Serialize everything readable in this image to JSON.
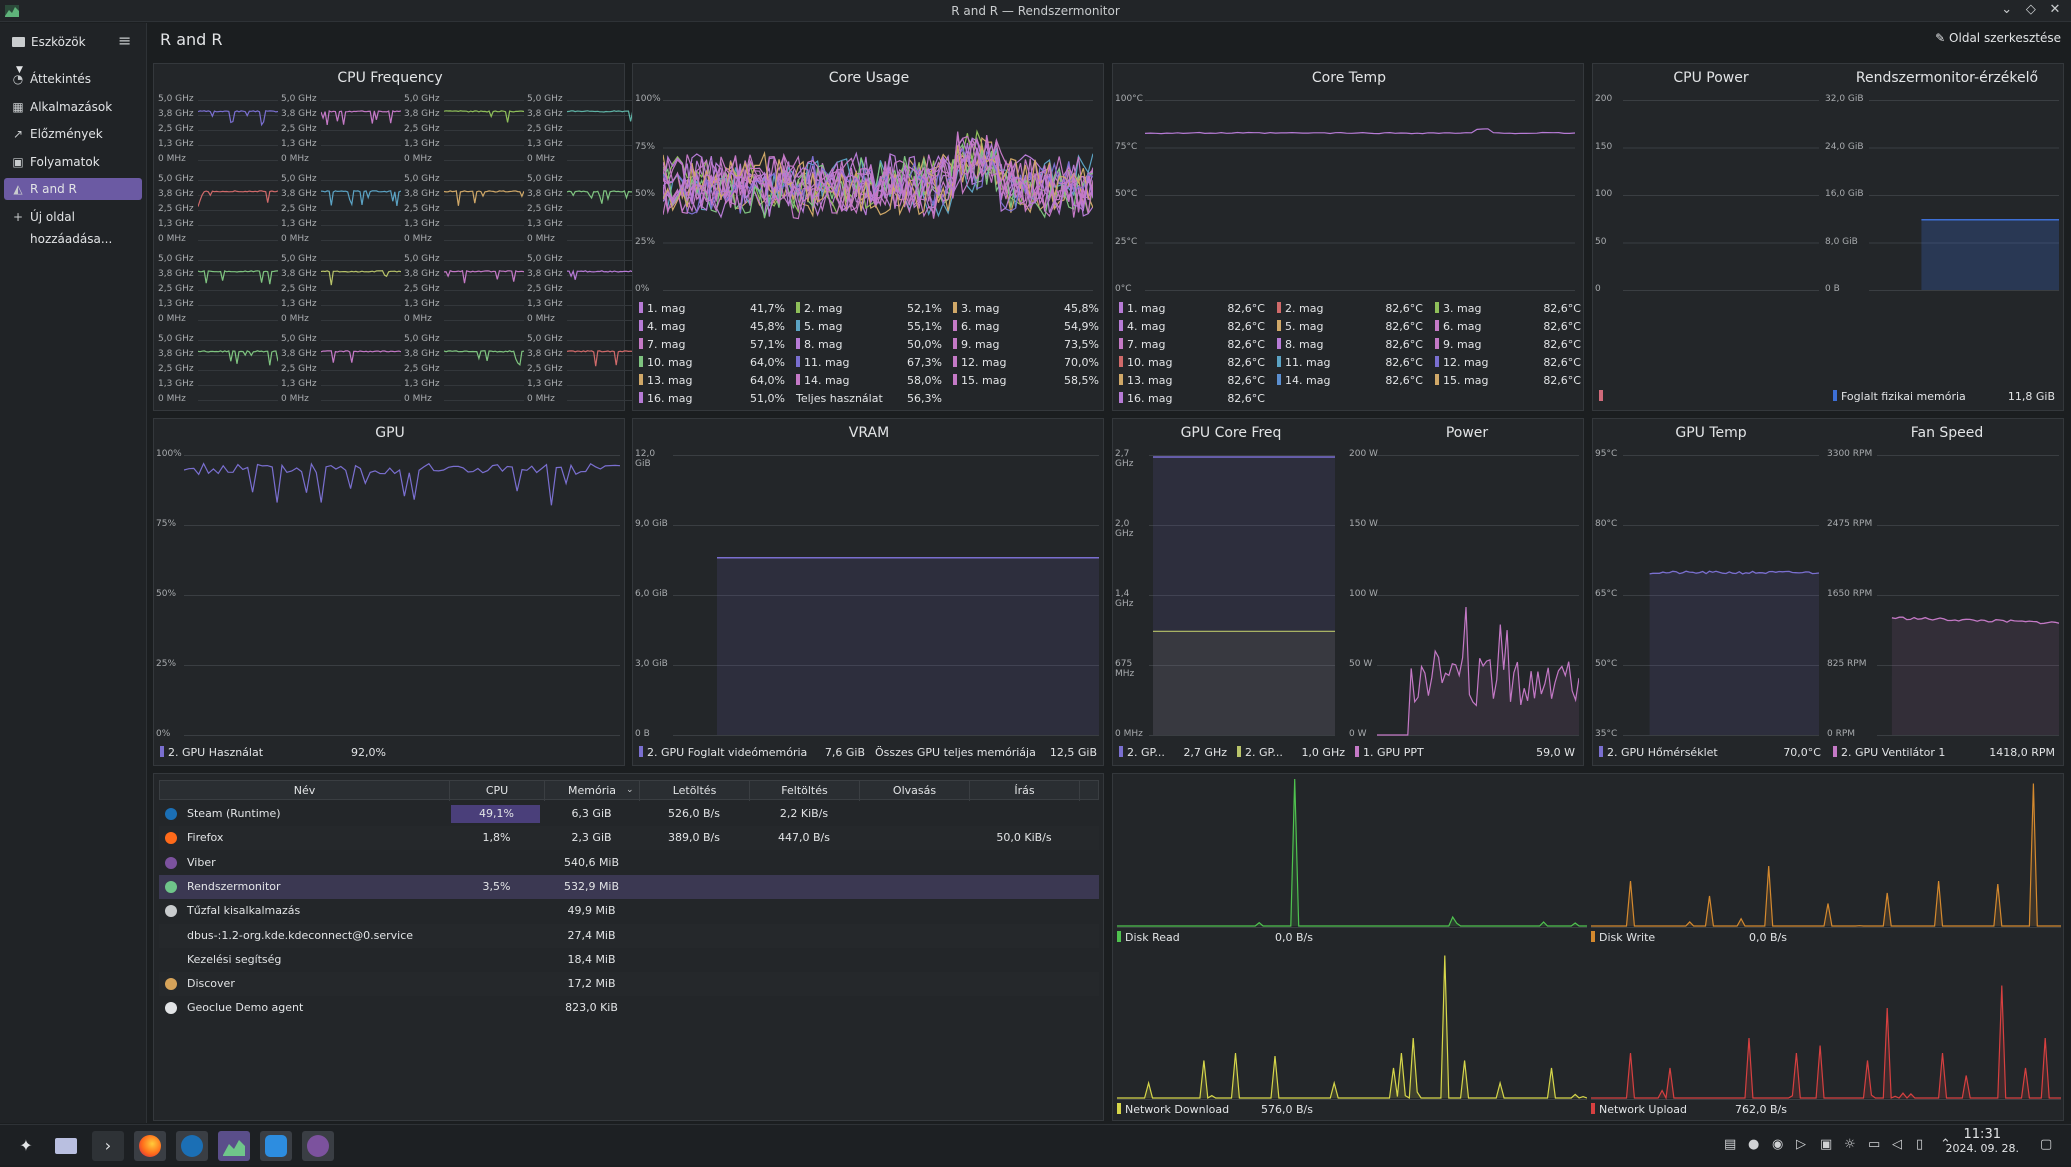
{
  "window": {
    "title": "R and R — Rendszermonitor",
    "min": "⌄",
    "max": "◇",
    "close": "✕"
  },
  "sidebar": {
    "tools_label": "Eszközök",
    "items": [
      {
        "label": "Áttekintés",
        "icon": "overview-icon",
        "glyph": "◔"
      },
      {
        "label": "Alkalmazások",
        "icon": "apps-icon",
        "glyph": "▦"
      },
      {
        "label": "Előzmények",
        "icon": "history-icon",
        "glyph": "↗"
      },
      {
        "label": "Folyamatok",
        "icon": "processes-icon",
        "glyph": "▣"
      },
      {
        "label": "R and R",
        "icon": "chart-icon",
        "glyph": "◭"
      },
      {
        "label": "Új oldal hozzáadása...",
        "icon": "add-icon",
        "glyph": "+"
      }
    ]
  },
  "header": {
    "page_title": "R and R",
    "edit_label": "Oldal szerkesztése"
  },
  "panels": {
    "cpu_freq": {
      "title": "CPU Frequency",
      "ticks": [
        "5,0 GHz",
        "3,8 GHz",
        "2,5 GHz",
        "1,3 GHz",
        "0 MHz"
      ]
    },
    "core_usage": {
      "title": "Core Usage",
      "ticks": [
        "100%",
        "75%",
        "50%",
        "25%",
        "0%"
      ],
      "legend": [
        [
          "1. mag",
          "41,7%",
          "#b77bd6"
        ],
        [
          "2. mag",
          "52,1%",
          "#8fbf5a"
        ],
        [
          "3. mag",
          "45,8%",
          "#d0a868"
        ],
        [
          "4. mag",
          "45,8%",
          "#b77bd6"
        ],
        [
          "5. mag",
          "55,1%",
          "#5ba3c4"
        ],
        [
          "6. mag",
          "54,9%",
          "#c479c6"
        ],
        [
          "7. mag",
          "57,1%",
          "#c479c6"
        ],
        [
          "8. mag",
          "50,0%",
          "#b77bd6"
        ],
        [
          "9. mag",
          "73,5%",
          "#c479c6"
        ],
        [
          "10. mag",
          "64,0%",
          "#7fc480"
        ],
        [
          "11. mag",
          "67,3%",
          "#7a6fd0"
        ],
        [
          "12. mag",
          "70,0%",
          "#c479c6"
        ],
        [
          "13. mag",
          "64,0%",
          "#d0a868"
        ],
        [
          "14. mag",
          "58,0%",
          "#c479c6"
        ],
        [
          "15. mag",
          "58,5%",
          "#c479c6"
        ],
        [
          "16. mag",
          "51,0%",
          "#b77bd6"
        ]
      ],
      "total_label": "Teljes használat",
      "total_value": "56,3%"
    },
    "core_temp": {
      "title": "Core Temp",
      "ticks": [
        "100°C",
        "75°C",
        "50°C",
        "25°C",
        "0°C"
      ],
      "legend": [
        [
          "1. mag",
          "82,6°C",
          "#b77bd6"
        ],
        [
          "2. mag",
          "82,6°C",
          "#d06a6a"
        ],
        [
          "3. mag",
          "82,6°C",
          "#8fbf5a"
        ],
        [
          "4. mag",
          "82,6°C",
          "#b77bd6"
        ],
        [
          "5. mag",
          "82,6°C",
          "#d0a868"
        ],
        [
          "6. mag",
          "82,6°C",
          "#c479c6"
        ],
        [
          "7. mag",
          "82,6°C",
          "#c479c6"
        ],
        [
          "8. mag",
          "82,6°C",
          "#b77bd6"
        ],
        [
          "9. mag",
          "82,6°C",
          "#c479c6"
        ],
        [
          "10. mag",
          "82,6°C",
          "#d06a6a"
        ],
        [
          "11. mag",
          "82,6°C",
          "#5ba3c4"
        ],
        [
          "12. mag",
          "82,6°C",
          "#7a6fd0"
        ],
        [
          "13. mag",
          "82,6°C",
          "#d0a868"
        ],
        [
          "14. mag",
          "82,6°C",
          "#5b8fd0"
        ],
        [
          "15. mag",
          "82,6°C",
          "#d0a868"
        ],
        [
          "16. mag",
          "82,6°C",
          "#b77bd6"
        ]
      ]
    },
    "cpu_power": {
      "title": "CPU Power",
      "ticks": [
        "200",
        "150",
        "100",
        "50",
        "0"
      ]
    },
    "sensor": {
      "title": "Rendszermonitor-érzékelő",
      "ticks": [
        "32,0 GiB",
        "24,0 GiB",
        "16,0 GiB",
        "8,0 GiB",
        "0 B"
      ],
      "legend_label": "Foglalt fizikai memória",
      "legend_value": "11,8 GiB",
      "used_fraction": 0.37
    },
    "gpu": {
      "title": "GPU",
      "ticks": [
        "100%",
        "75%",
        "50%",
        "25%",
        "0%"
      ],
      "legend_label": "2. GPU Használat",
      "legend_value": "92,0%"
    },
    "vram": {
      "title": "VRAM",
      "ticks": [
        "12,0 GiB",
        "9,0 GiB",
        "6,0 GiB",
        "3,0 GiB",
        "0 B"
      ],
      "legend_label": "2. GPU Foglalt videómemória",
      "legend_value": "7,6 GiB",
      "total_label": "Összes GPU teljes memóriája",
      "total_value": "12,5 GiB",
      "used_fraction": 0.633
    },
    "gpu_core_freq": {
      "title": "GPU Core Freq",
      "ticks": [
        "2,7 GHz",
        "2,0 GHz",
        "1,4 GHz",
        "675 MHz",
        "0 MHz"
      ],
      "legend": [
        [
          "2. GP...",
          "2,7 GHz",
          "#7a6fd0"
        ],
        [
          "2. GP...",
          "1,0 GHz",
          "#b9c46a"
        ]
      ]
    },
    "power": {
      "title": "Power",
      "ticks": [
        "200 W",
        "150 W",
        "100 W",
        "50 W",
        "0 W"
      ],
      "legend_label": "1. GPU PPT",
      "legend_value": "59,0 W"
    },
    "gpu_temp": {
      "title": "GPU Temp",
      "ticks": [
        "95°C",
        "80°C",
        "65°C",
        "50°C",
        "35°C"
      ],
      "legend_label": "2. GPU Hőmérséklet",
      "legend_value": "70,0°C"
    },
    "fan_speed": {
      "title": "Fan Speed",
      "ticks": [
        "3300 RPM",
        "2475 RPM",
        "1650 RPM",
        "825 RPM",
        "0 RPM"
      ],
      "legend_label": "2. GPU Ventilátor 1",
      "legend_value": "1418,0 RPM"
    },
    "disk_read": {
      "label": "Disk Read",
      "value": "0,0 B/s"
    },
    "disk_write": {
      "label": "Disk Write",
      "value": "0,0 B/s"
    },
    "net_down": {
      "label": "Network Download",
      "value": "576,0 B/s"
    },
    "net_up": {
      "label": "Network Upload",
      "value": "762,0 B/s"
    }
  },
  "process_table": {
    "columns": [
      "Név",
      "CPU",
      "Memória",
      "Letöltés",
      "Feltöltés",
      "Olvasás",
      "Írás"
    ],
    "rows": [
      {
        "name": "Steam (Runtime)",
        "cpu": "49,1%",
        "mem": "6,3 GiB",
        "down": "526,0 B/s",
        "up": "2,2 KiB/s",
        "read": "",
        "write": "",
        "icon": "steam-icon",
        "cpu_fraction": 0.491
      },
      {
        "name": "Firefox",
        "cpu": "1,8%",
        "mem": "2,3 GiB",
        "down": "389,0 B/s",
        "up": "447,0 B/s",
        "read": "",
        "write": "50,0 KiB/s",
        "icon": "firefox-icon",
        "cpu_fraction": 0.018
      },
      {
        "name": "Viber",
        "cpu": "",
        "mem": "540,6 MiB",
        "down": "",
        "up": "",
        "read": "",
        "write": "",
        "icon": "viber-icon",
        "cpu_fraction": 0
      },
      {
        "name": "Rendszermonitor",
        "cpu": "3,5%",
        "mem": "532,9 MiB",
        "down": "",
        "up": "",
        "read": "",
        "write": "",
        "icon": "system-monitor-icon",
        "cpu_fraction": 0.035
      },
      {
        "name": "Tűzfal kisalkalmazás",
        "cpu": "",
        "mem": "49,9 MiB",
        "down": "",
        "up": "",
        "read": "",
        "write": "",
        "icon": "firewall-icon",
        "cpu_fraction": 0
      },
      {
        "name": "dbus-:1.2-org.kde.kdeconnect@0.service",
        "cpu": "",
        "mem": "27,4 MiB",
        "down": "",
        "up": "",
        "read": "",
        "write": "",
        "icon": "",
        "cpu_fraction": 0
      },
      {
        "name": "Kezelési segítség",
        "cpu": "",
        "mem": "18,4 MiB",
        "down": "",
        "up": "",
        "read": "",
        "write": "",
        "icon": "",
        "cpu_fraction": 0
      },
      {
        "name": "Discover",
        "cpu": "",
        "mem": "17,2 MiB",
        "down": "",
        "up": "",
        "read": "",
        "write": "",
        "icon": "discover-icon",
        "cpu_fraction": 0
      },
      {
        "name": "Geoclue Demo agent",
        "cpu": "",
        "mem": "823,0 KiB",
        "down": "",
        "up": "",
        "read": "",
        "write": "",
        "icon": "location-icon",
        "cpu_fraction": 0
      }
    ]
  },
  "taskbar": {
    "time": "11:31",
    "date": "2024. 09. 28."
  }
}
